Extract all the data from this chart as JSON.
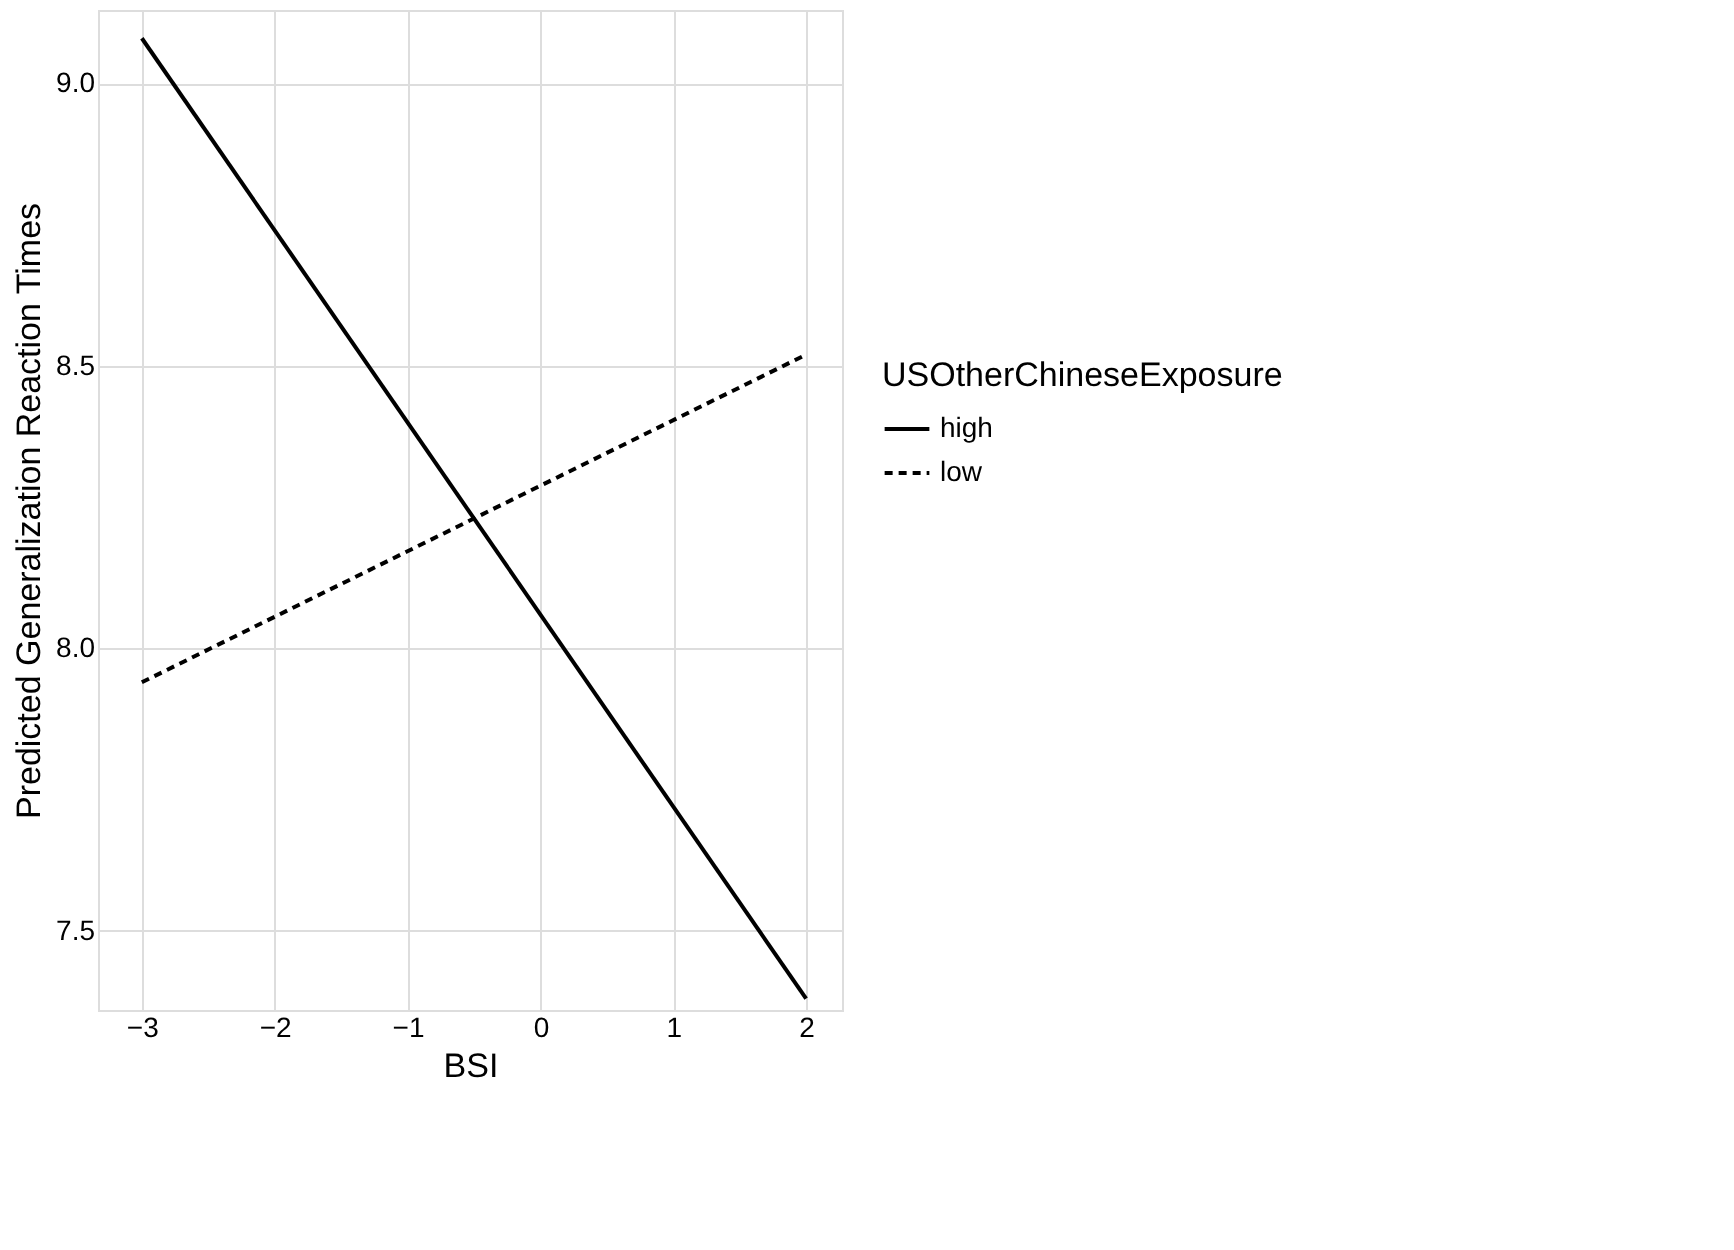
{
  "chart_data": {
    "type": "line",
    "xlabel": "BSI",
    "ylabel": "Predicted Generalization Reaction Times",
    "legend_title": "USOtherChineseExposure",
    "x": [
      -3,
      2
    ],
    "series": [
      {
        "name": "high",
        "color": "#000000",
        "line_style": "solid",
        "values": [
          9.08,
          7.38
        ]
      },
      {
        "name": "low",
        "color": "#000000",
        "line_style": "dashed",
        "values": [
          7.94,
          8.52
        ]
      }
    ],
    "xlim": [
      -3.33,
      2.27
    ],
    "xticks": [
      -3,
      -2,
      -1,
      0,
      1,
      2
    ],
    "ylim": [
      7.36,
      9.13
    ],
    "yticks": [
      {
        "value": 7.5,
        "label": "7.5"
      },
      {
        "value": 8,
        "label": "8.0"
      },
      {
        "value": 8.5,
        "label": "8.5"
      },
      {
        "value": 9,
        "label": "9.0"
      }
    ],
    "grid": true,
    "legend": "right",
    "marker": "none"
  }
}
